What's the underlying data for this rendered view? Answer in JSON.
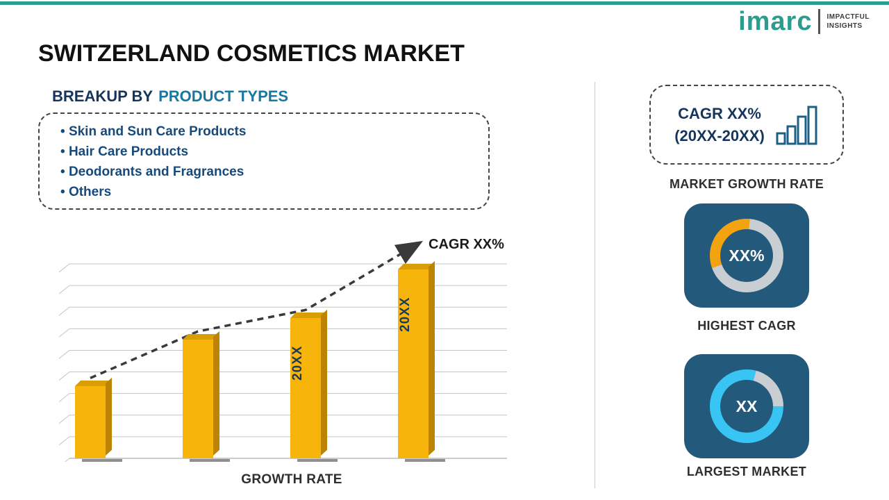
{
  "page": {
    "title": "SWITZERLAND COSMETICS MARKET"
  },
  "logo": {
    "brand": "imarc",
    "tagline_line1": "IMPACTFUL",
    "tagline_line2": "INSIGHTS"
  },
  "breakup": {
    "heading_prefix": "BREAKUP BY",
    "heading_highlight": "PRODUCT TYPES",
    "items": [
      "Skin and Sun Care Products",
      "Hair Care Products",
      "Deodorants and Fragrances",
      "Others"
    ]
  },
  "chart_data": {
    "type": "bar",
    "categories": [
      "",
      "",
      "20XX",
      "20XX"
    ],
    "values": [
      37,
      61,
      72,
      97
    ],
    "ylim": [
      0,
      100
    ],
    "bar_color": "#f7b50c",
    "trend_label": "CAGR XX%",
    "trend": "increasing-dashed-arrow",
    "xlabel": "GROWTH RATE",
    "ylabel": "",
    "gridlines": true,
    "legend": "none"
  },
  "right_panel": {
    "cagr_card": {
      "line1": "CAGR XX%",
      "line2": "(20XX-20XX)"
    },
    "market_growth_rate_label": "MARKET GROWTH RATE",
    "highest_cagr": {
      "value": "XX%",
      "label": "HIGHEST CAGR",
      "accent_color": "#f2a30f",
      "ring_color": "#c9ced3",
      "card_color": "#235a7c"
    },
    "largest_market": {
      "value": "XX",
      "label": "LARGEST MARKET",
      "accent_color": "#38c5f4",
      "ring_color": "#c9ced3",
      "card_color": "#235a7c"
    }
  },
  "theme": {
    "top_bar_color": "#2a9d8f",
    "heading_navy": "#16355c",
    "heading_teal": "#1878a0"
  }
}
